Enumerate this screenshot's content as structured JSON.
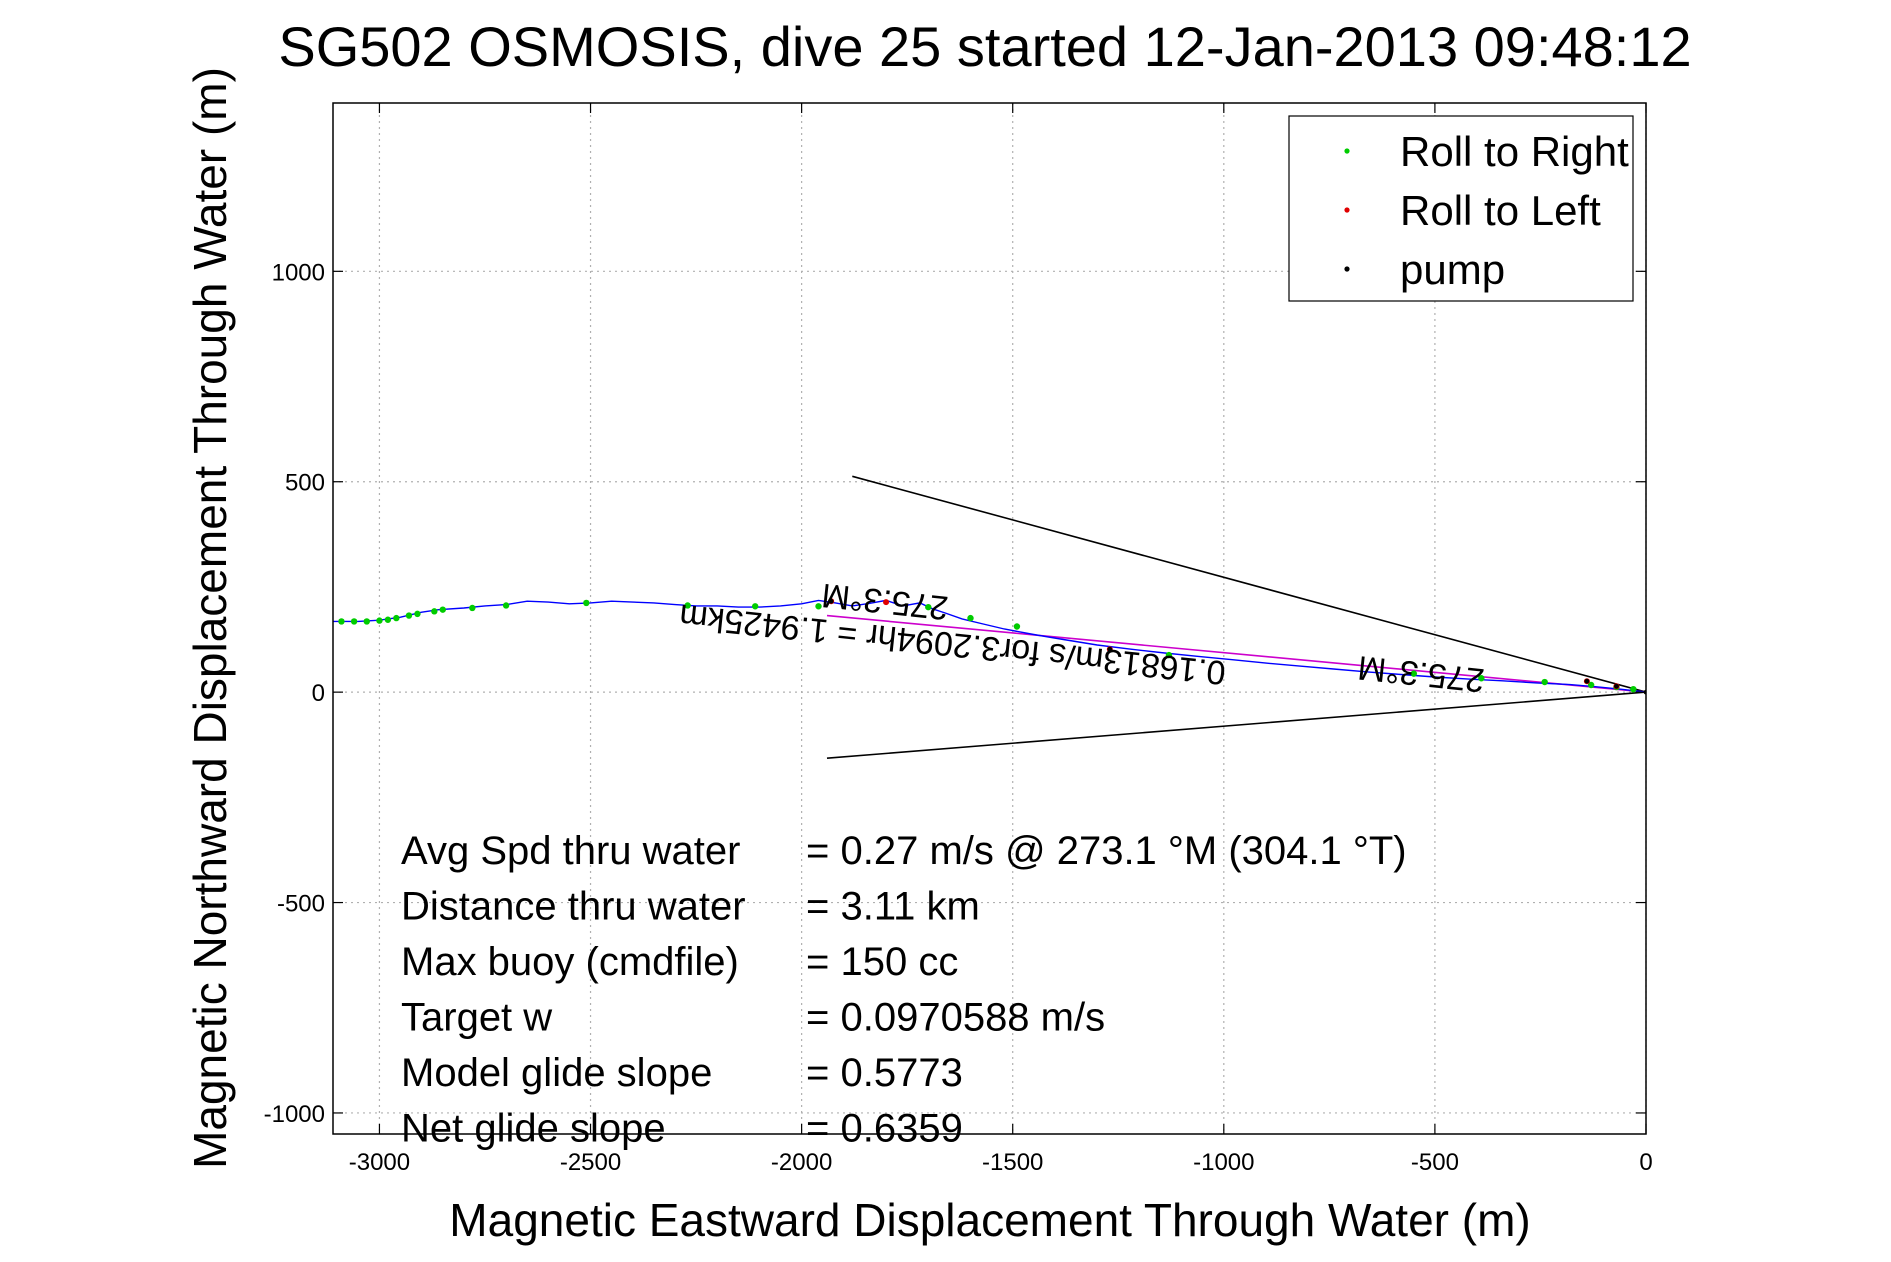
{
  "chart_data": {
    "type": "scatter",
    "title": "SG502 OSMOSIS, dive 25 started 12-Jan-2013 09:48:12",
    "xlabel": "Magnetic Eastward Displacement Through Water (m)",
    "ylabel": "Magnetic Northward Displacement Through Water (m)",
    "xlim": [
      -3110,
      0
    ],
    "ylim": [
      -1050,
      1400
    ],
    "xticks": [
      -3000,
      -2500,
      -2000,
      -1500,
      -1000,
      -500,
      0
    ],
    "yticks": [
      -1000,
      -500,
      0,
      500,
      1000
    ],
    "grid": true,
    "legend_position": "top-right",
    "legend": [
      {
        "label": "Roll to Right",
        "color": "#00cc00"
      },
      {
        "label": "Roll to Left",
        "color": "#e00000"
      },
      {
        "label": "pump",
        "color": "#000000"
      }
    ],
    "track": {
      "color": "#0000ff",
      "x": [
        -3110,
        -3050,
        -3000,
        -2950,
        -2900,
        -2860,
        -2800,
        -2750,
        -2700,
        -2650,
        -2600,
        -2550,
        -2500,
        -2450,
        -2400,
        -2350,
        -2300,
        -2250,
        -2200,
        -2150,
        -2100,
        -2050,
        -2000,
        -1960,
        -1920,
        -1880,
        -1840,
        -1800,
        -1760,
        -1720,
        -1690,
        -1660,
        -1620,
        -1570,
        -1520,
        -1450,
        -1380,
        -1300,
        -1220,
        -1140,
        -1060,
        -980,
        -900,
        -820,
        -740,
        -660,
        -580,
        -500,
        -420,
        -340,
        -260,
        -180,
        -120,
        -60,
        0
      ],
      "y": [
        168,
        168,
        171,
        178,
        190,
        196,
        200,
        205,
        208,
        216,
        214,
        210,
        212,
        216,
        214,
        212,
        208,
        205,
        205,
        202,
        202,
        205,
        210,
        218,
        212,
        205,
        211,
        218,
        205,
        212,
        198,
        188,
        174,
        162,
        150,
        137,
        125,
        112,
        102,
        93,
        85,
        77,
        69,
        62,
        55,
        48,
        42,
        36,
        31,
        27,
        22,
        18,
        13,
        7,
        0
      ]
    },
    "roll_to_right": {
      "x": [
        -3090,
        -3060,
        -3030,
        -3000,
        -2980,
        -2960,
        -2930,
        -2910,
        -2870,
        -2850,
        -2780,
        -2700,
        -2510,
        -2270,
        -2110,
        -1960,
        -1700,
        -1600,
        -1490,
        -1130,
        -550,
        -390,
        -240,
        -130,
        -70,
        -30
      ],
      "y": [
        168,
        168,
        168,
        170,
        172,
        176,
        182,
        186,
        192,
        196,
        200,
        206,
        212,
        206,
        204,
        204,
        202,
        176,
        156,
        88,
        44,
        33,
        24,
        17,
        12,
        7
      ]
    },
    "roll_to_left": {
      "x": [
        -1930,
        -1800,
        -1270,
        -140,
        -70
      ],
      "y": [
        216,
        214,
        102,
        26,
        14
      ]
    },
    "pump": {
      "x": [
        -1930,
        -1270,
        -140,
        -70,
        0
      ],
      "y": [
        216,
        102,
        26,
        14,
        0
      ]
    },
    "reference_lines": [
      {
        "color": "#000000",
        "x": [
          -1880,
          0
        ],
        "y": [
          513,
          0
        ]
      },
      {
        "color": "#000000",
        "x": [
          -1940,
          0
        ],
        "y": [
          -157,
          0
        ]
      },
      {
        "color": "#cc00cc",
        "x": [
          -1940,
          0
        ],
        "y": [
          182,
          0
        ]
      }
    ],
    "annotations": [
      {
        "text": "0.16813m/s for3.2094hr = 1.9425km",
        "x": -1640,
        "y": 140,
        "angle": 186
      },
      {
        "text": "275.3°M",
        "x": -1800,
        "y": 242,
        "angle": 186
      },
      {
        "text": "275.3°M",
        "x": -530,
        "y": 70,
        "angle": 186
      }
    ],
    "stats": [
      {
        "label": "Avg Spd thru water",
        "value": "=  0.27 m/s @ 273.1 °M (304.1 °T)"
      },
      {
        "label": "Distance thru water",
        "value": "=  3.11 km"
      },
      {
        "label": "Max buoy (cmdfile)",
        "value": "= 150 cc"
      },
      {
        "label": "Target w",
        "value": "= 0.0970588 m/s"
      },
      {
        "label": "Model glide slope",
        "value": "= 0.5773"
      },
      {
        "label": "Net glide slope",
        "value": "= 0.6359"
      }
    ]
  }
}
